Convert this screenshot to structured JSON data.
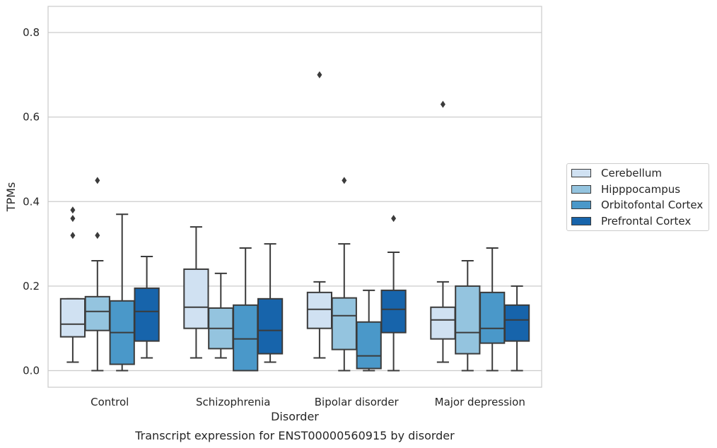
{
  "chart_data": {
    "type": "box",
    "title": "",
    "caption": "Transcript expression for ENST00000560915 by disorder",
    "xlabel": "Disorder",
    "ylabel": "TPMs",
    "ylim": [
      -0.04,
      0.86
    ],
    "yticks": [
      "0.0",
      "0.2",
      "0.4",
      "0.6",
      "0.8"
    ],
    "ytick_values": [
      0.0,
      0.2,
      0.4,
      0.6,
      0.8
    ],
    "grid": true,
    "legend_position": "right",
    "categories": [
      "Control",
      "Schizophrenia",
      "Bipolar disorder",
      "Major depression"
    ],
    "series": [
      {
        "name": "Cerebellum",
        "color": "#d0e1f2",
        "boxes": [
          {
            "whislo": 0.02,
            "q1": 0.08,
            "med": 0.11,
            "q3": 0.17,
            "whishi": 0.17,
            "fliers": [
              0.32,
              0.36,
              0.38
            ]
          },
          {
            "whislo": 0.03,
            "q1": 0.1,
            "med": 0.15,
            "q3": 0.24,
            "whishi": 0.34,
            "fliers": []
          },
          {
            "whislo": 0.03,
            "q1": 0.1,
            "med": 0.145,
            "q3": 0.185,
            "whishi": 0.21,
            "fliers": [
              0.7
            ]
          },
          {
            "whislo": 0.02,
            "q1": 0.075,
            "med": 0.12,
            "q3": 0.15,
            "whishi": 0.21,
            "fliers": [
              0.63
            ]
          }
        ]
      },
      {
        "name": "Hipppocampus",
        "color": "#94c4df",
        "boxes": [
          {
            "whislo": 0.0,
            "q1": 0.095,
            "med": 0.14,
            "q3": 0.175,
            "whishi": 0.26,
            "fliers": [
              0.32,
              0.45
            ]
          },
          {
            "whislo": 0.03,
            "q1": 0.052,
            "med": 0.1,
            "q3": 0.148,
            "whishi": 0.23,
            "fliers": []
          },
          {
            "whislo": 0.0,
            "q1": 0.05,
            "med": 0.13,
            "q3": 0.172,
            "whishi": 0.3,
            "fliers": [
              0.45
            ]
          },
          {
            "whislo": 0.0,
            "q1": 0.04,
            "med": 0.09,
            "q3": 0.2,
            "whishi": 0.26,
            "fliers": []
          }
        ]
      },
      {
        "name": "Orbitofontal Cortex",
        "color": "#4a98c9",
        "boxes": [
          {
            "whislo": 0.0,
            "q1": 0.015,
            "med": 0.09,
            "q3": 0.165,
            "whishi": 0.37,
            "fliers": []
          },
          {
            "whislo": 0.0,
            "q1": 0.0,
            "med": 0.075,
            "q3": 0.155,
            "whishi": 0.29,
            "fliers": []
          },
          {
            "whislo": 0.0,
            "q1": 0.005,
            "med": 0.035,
            "q3": 0.115,
            "whishi": 0.19,
            "fliers": []
          },
          {
            "whislo": 0.0,
            "q1": 0.065,
            "med": 0.1,
            "q3": 0.185,
            "whishi": 0.29,
            "fliers": []
          }
        ]
      },
      {
        "name": "Prefrontal Cortex",
        "color": "#1764ab",
        "boxes": [
          {
            "whislo": 0.03,
            "q1": 0.07,
            "med": 0.14,
            "q3": 0.195,
            "whishi": 0.27,
            "fliers": []
          },
          {
            "whislo": 0.02,
            "q1": 0.04,
            "med": 0.095,
            "q3": 0.17,
            "whishi": 0.3,
            "fliers": []
          },
          {
            "whislo": 0.0,
            "q1": 0.09,
            "med": 0.145,
            "q3": 0.19,
            "whishi": 0.28,
            "fliers": [
              0.36
            ]
          },
          {
            "whislo": 0.0,
            "q1": 0.07,
            "med": 0.12,
            "q3": 0.155,
            "whishi": 0.2,
            "fliers": []
          }
        ]
      }
    ]
  }
}
